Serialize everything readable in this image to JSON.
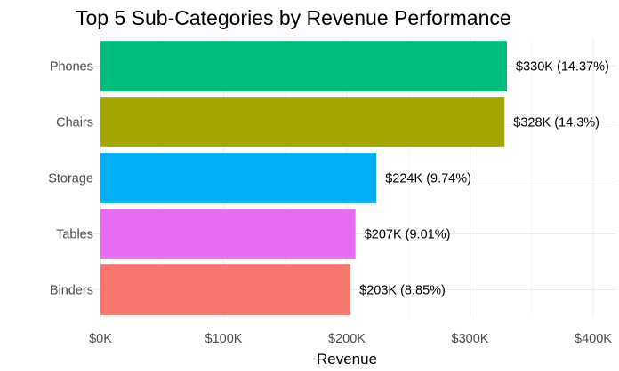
{
  "chart_data": {
    "type": "bar",
    "orientation": "horizontal",
    "title": "Top 5 Sub-Categories by Revenue Performance",
    "xlabel": "Revenue",
    "ylabel": "",
    "categories": [
      "Phones",
      "Chairs",
      "Storage",
      "Tables",
      "Binders"
    ],
    "values": [
      330000,
      328000,
      224000,
      207000,
      203000
    ],
    "data_labels": [
      "$330K (14.37%)",
      "$328K (14.3%)",
      "$224K (9.74%)",
      "$207K (9.01%)",
      "$203K (8.85%)"
    ],
    "colors": [
      "#00BF7D",
      "#A3A500",
      "#00B0F6",
      "#E76BF3",
      "#F8766D"
    ],
    "xlim": [
      0,
      400000
    ],
    "x_ticks": [
      0,
      100000,
      200000,
      300000,
      400000
    ],
    "x_tick_labels": [
      "$0K",
      "$100K",
      "$200K",
      "$300K",
      "$400K"
    ],
    "grid": true,
    "legend": "none"
  }
}
